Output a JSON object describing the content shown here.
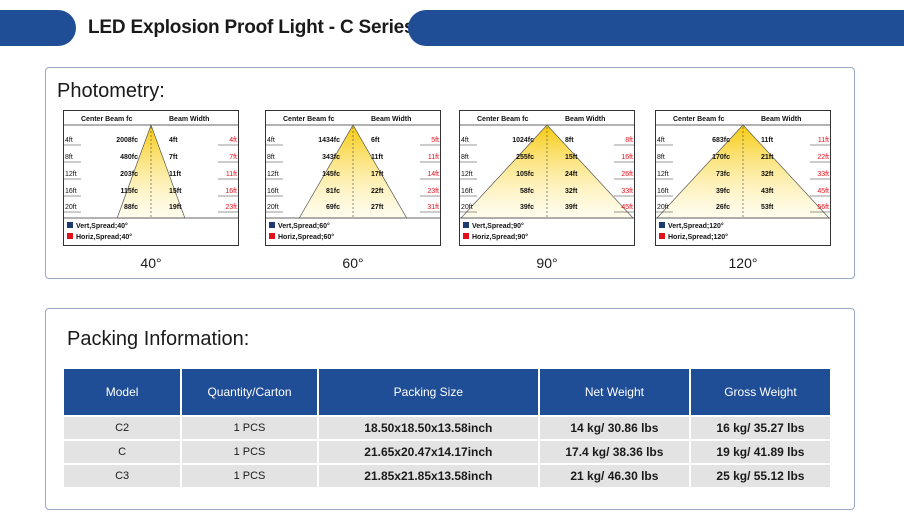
{
  "header": {
    "title": "LED Explosion Proof Light - C Series"
  },
  "photometry": {
    "title": "Photometry:",
    "col_header_left": "Center Beam fc",
    "col_header_right": "Beam Width",
    "diagrams": [
      {
        "angle": "40°",
        "distances": [
          "4ft",
          "8ft",
          "12ft",
          "16ft",
          "20ft"
        ],
        "fc": [
          "2008fc",
          "480fc",
          "203fc",
          "115fc",
          "88fc"
        ],
        "width_vert": [
          "4ft",
          "7ft",
          "11ft",
          "15ft",
          "19ft"
        ],
        "width_horiz": [
          "4ft",
          "7ft",
          "11ft",
          "16ft",
          "23ft"
        ],
        "legend_vert": "Vert,Spread;40°",
        "legend_horiz": "Horiz,Spread;40°"
      },
      {
        "angle": "60°",
        "distances": [
          "4ft",
          "8ft",
          "12ft",
          "16ft",
          "20ft"
        ],
        "fc": [
          "1434fc",
          "343fc",
          "145fc",
          "81fc",
          "69fc"
        ],
        "width_vert": [
          "6ft",
          "11ft",
          "17ft",
          "22ft",
          "27ft"
        ],
        "width_horiz": [
          "5ft",
          "11ft",
          "14ft",
          "23ft",
          "31ft"
        ],
        "legend_vert": "Vert,Spread;60°",
        "legend_horiz": "Horiz,Spread;60°"
      },
      {
        "angle": "90°",
        "distances": [
          "4ft",
          "8ft",
          "12ft",
          "16ft",
          "20ft"
        ],
        "fc": [
          "1024fc",
          "255fc",
          "105fc",
          "58fc",
          "39fc"
        ],
        "width_vert": [
          "8ft",
          "15ft",
          "24ft",
          "32ft",
          "39ft"
        ],
        "width_horiz": [
          "8ft",
          "16ft",
          "26ft",
          "33ft",
          "45ft"
        ],
        "legend_vert": "Vert,Spread;90°",
        "legend_horiz": "Horiz,Spread;90°"
      },
      {
        "angle": "120°",
        "distances": [
          "4ft",
          "8ft",
          "12ft",
          "16ft",
          "20ft"
        ],
        "fc": [
          "683fc",
          "170fc",
          "73fc",
          "39fc",
          "26fc"
        ],
        "width_vert": [
          "11ft",
          "21ft",
          "32ft",
          "43ft",
          "53ft"
        ],
        "width_horiz": [
          "11ft",
          "22ft",
          "33ft",
          "45ft",
          "56ft"
        ],
        "legend_vert": "Vert,Spread;120°",
        "legend_horiz": "Horiz,Spread;120°"
      }
    ]
  },
  "packing": {
    "title": "Packing Information:",
    "headers": [
      "Model",
      "Quantity/Carton",
      "Packing Size",
      "Net Weight",
      "Gross Weight"
    ],
    "rows": [
      [
        "C2",
        "1 PCS",
        "18.50x18.50x13.58inch",
        "14 kg/ 30.86 lbs",
        "16 kg/ 35.27 lbs"
      ],
      [
        "C",
        "1 PCS",
        "21.65x20.47x14.17inch",
        "17.4 kg/ 38.36 lbs",
        "19 kg/ 41.89 lbs"
      ],
      [
        "C3",
        "1 PCS",
        "21.85x21.85x13.58inch",
        "21 kg/ 46.30 lbs",
        "25 kg/ 55.12 lbs"
      ]
    ]
  },
  "colors": {
    "brand_blue": "#1f4d96",
    "legend_vert": "#1f3a6e",
    "legend_horiz": "#e0101c",
    "beam_yellow": "#f6c700",
    "cell_gray": "#e3e3e3"
  }
}
